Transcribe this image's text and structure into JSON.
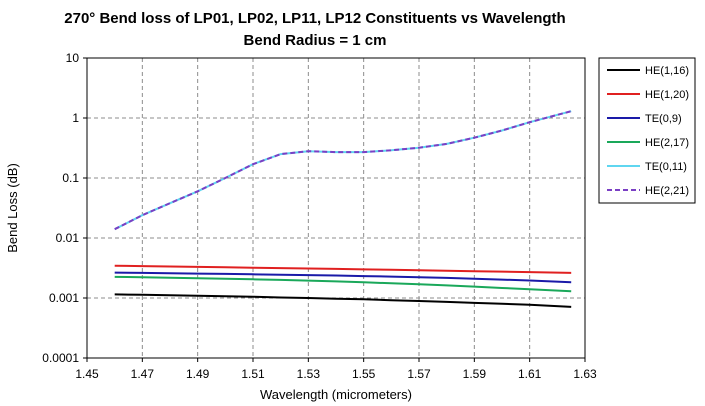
{
  "chart_data": {
    "type": "line",
    "title": "270° Bend loss of LP01, LP02, LP11, LP12 Constituents vs Wavelength",
    "subtitle": "Bend Radius = 1 cm",
    "xlabel": "Wavelength (micrometers)",
    "ylabel": "Bend Loss (dB)",
    "xlim": [
      1.45,
      1.63
    ],
    "ylim": [
      0.0001,
      10
    ],
    "yscale": "log",
    "grid": true,
    "legend_position": "right",
    "x_ticks": [
      "1.45",
      "1.47",
      "1.49",
      "1.51",
      "1.53",
      "1.55",
      "1.57",
      "1.59",
      "1.61",
      "1.63"
    ],
    "y_ticks": [
      "10",
      "1",
      "0.1",
      "0.01",
      "0.001",
      "0.0001"
    ],
    "x": [
      1.46,
      1.47,
      1.48,
      1.49,
      1.5,
      1.51,
      1.52,
      1.53,
      1.54,
      1.55,
      1.56,
      1.57,
      1.58,
      1.59,
      1.6,
      1.61,
      1.625
    ],
    "series": [
      {
        "name": "HE(1,16)",
        "color": "#000000",
        "dashed": false,
        "values": [
          0.00115,
          0.00113,
          0.00111,
          0.00109,
          0.00107,
          0.00105,
          0.00102,
          0.001,
          0.00097,
          0.00095,
          0.00092,
          0.00089,
          0.00086,
          0.00083,
          0.0008,
          0.00077,
          0.00071
        ]
      },
      {
        "name": "HE(1,20)",
        "color": "#e02020",
        "dashed": false,
        "values": [
          0.00345,
          0.0034,
          0.00335,
          0.0033,
          0.00325,
          0.0032,
          0.00315,
          0.0031,
          0.00305,
          0.003,
          0.00295,
          0.0029,
          0.00285,
          0.0028,
          0.00275,
          0.0027,
          0.00262
        ]
      },
      {
        "name": "TE(0,9)",
        "color": "#1a1aa8",
        "dashed": false,
        "values": [
          0.00265,
          0.00262,
          0.00258,
          0.00255,
          0.00252,
          0.00248,
          0.00245,
          0.00241,
          0.00237,
          0.00232,
          0.00227,
          0.00222,
          0.00216,
          0.0021,
          0.00203,
          0.00196,
          0.00183
        ]
      },
      {
        "name": "HE(2,17)",
        "color": "#1aa85a",
        "dashed": false,
        "values": [
          0.00225,
          0.00222,
          0.00218,
          0.00214,
          0.0021,
          0.00205,
          0.002,
          0.00195,
          0.00189,
          0.00183,
          0.00176,
          0.00169,
          0.00162,
          0.00155,
          0.00147,
          0.0014,
          0.0013
        ]
      },
      {
        "name": "TE(0,11)",
        "color": "#5fd6f0",
        "dashed": false,
        "values": [
          0.014,
          0.024,
          0.038,
          0.06,
          0.1,
          0.17,
          0.25,
          0.28,
          0.27,
          0.27,
          0.29,
          0.32,
          0.37,
          0.47,
          0.62,
          0.85,
          1.3
        ]
      },
      {
        "name": "HE(2,21)",
        "color": "#7a3fc4",
        "dashed": true,
        "values": [
          0.014,
          0.024,
          0.038,
          0.06,
          0.1,
          0.17,
          0.25,
          0.28,
          0.27,
          0.27,
          0.29,
          0.32,
          0.37,
          0.47,
          0.62,
          0.85,
          1.3
        ]
      }
    ]
  }
}
